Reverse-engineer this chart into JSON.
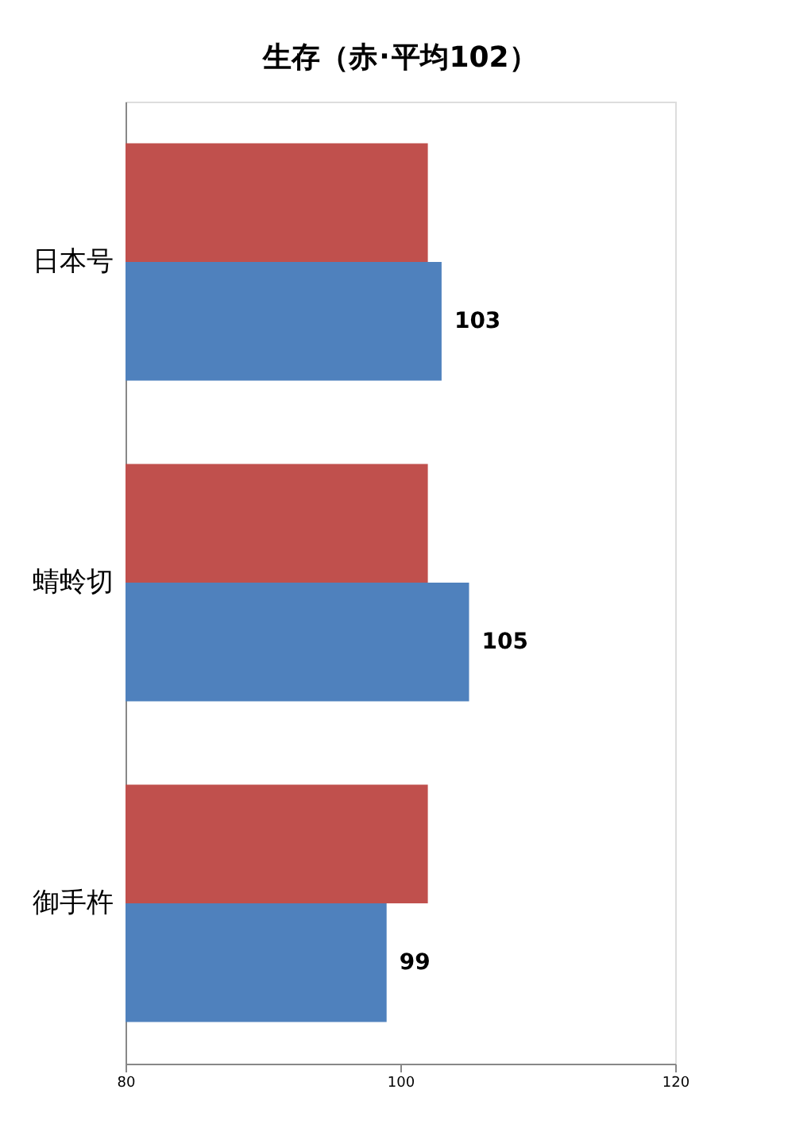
{
  "chart_data": {
    "type": "bar",
    "orientation": "horizontal",
    "title": "生存（赤･平均102）",
    "categories": [
      "日本号",
      "蜻蛉切",
      "御手杵"
    ],
    "series": [
      {
        "color": "#c0504d",
        "values": [
          102,
          102,
          102
        ]
      },
      {
        "color": "#4f81bd",
        "values": [
          103,
          105,
          99
        ],
        "value_labels": [
          "103",
          "105",
          "99"
        ]
      }
    ],
    "xlim": [
      80,
      120
    ],
    "xticks": [
      80,
      100,
      120
    ],
    "grid": false,
    "legend": false
  }
}
